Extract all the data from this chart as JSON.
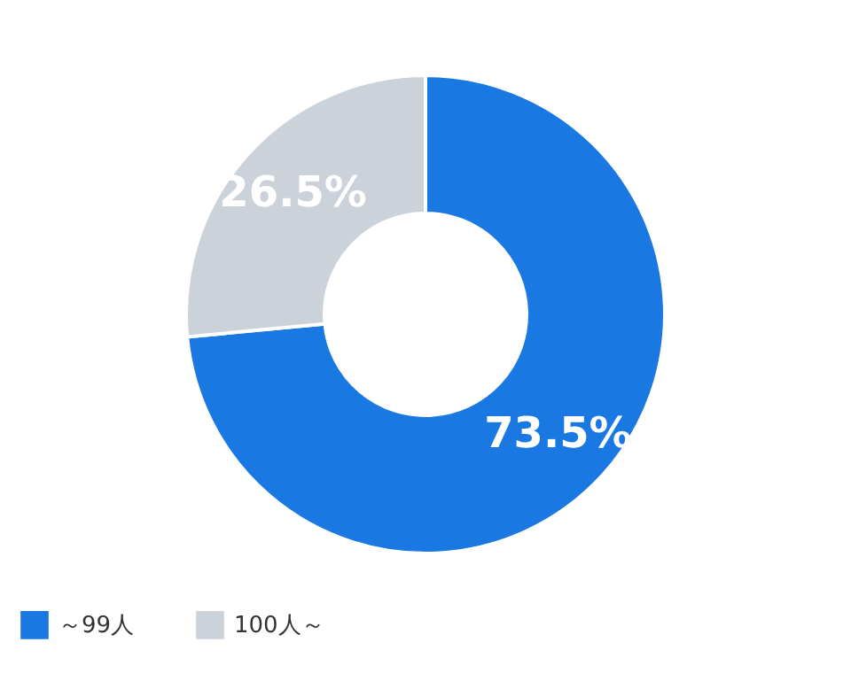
{
  "chart_data": {
    "type": "donut",
    "categories": [
      "～99人",
      "100人～"
    ],
    "values": [
      73.5,
      26.5
    ],
    "colors": [
      "#1a78e2",
      "#cbd2da"
    ],
    "value_labels": [
      "73.5%",
      "26.5%"
    ],
    "legend": "bottom"
  }
}
